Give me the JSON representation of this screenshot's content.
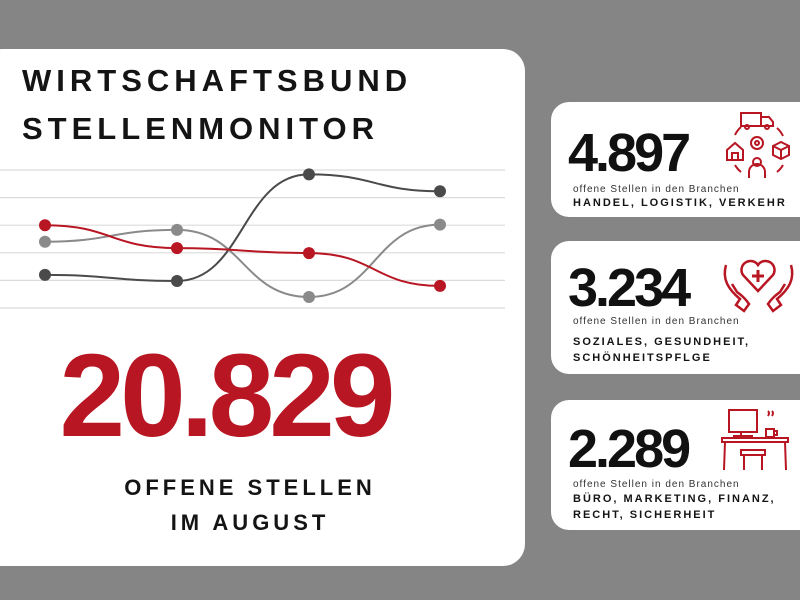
{
  "header": {
    "line1": "WIRTSCHAFTSBUND",
    "line2": "STELLENMONITOR"
  },
  "main": {
    "total": "20.829",
    "label_line1": "OFFENE STELLEN",
    "label_line2": "IM AUGUST"
  },
  "chart_data": {
    "type": "line",
    "title": "",
    "xlabel": "",
    "ylabel": "",
    "x": [
      1,
      2,
      3,
      4
    ],
    "ylim": [
      0,
      5
    ],
    "grid": true,
    "series": [
      {
        "name": "dark",
        "color": "#4a4a4a",
        "values": [
          1.2,
          0.98,
          4.84,
          4.23
        ]
      },
      {
        "name": "gray",
        "color": "#8a8a8a",
        "values": [
          2.4,
          2.83,
          0.4,
          3.02
        ]
      },
      {
        "name": "red",
        "color": "#b81622",
        "values": [
          3.0,
          2.17,
          1.99,
          0.8
        ]
      }
    ]
  },
  "cards": [
    {
      "number": "4.897",
      "small": "offene Stellen in den Branchen",
      "category": "HANDEL, LOGISTIK, VERKEHR",
      "icon": "logistics-cycle-icon"
    },
    {
      "number": "3.234",
      "small": "offene Stellen in den Branchen",
      "category": "SOZIALES, GESUNDHEIT, SCHÖNHEITSPFLGE",
      "icon": "hands-heart-icon"
    },
    {
      "number": "2.289",
      "small": "offene Stellen in den Branchen",
      "category": "BÜRO, MARKETING, FINANZ, RECHT, SICHERHEIT",
      "icon": "office-desk-icon"
    }
  ],
  "colors": {
    "accent": "#b81622",
    "background": "#858585"
  }
}
